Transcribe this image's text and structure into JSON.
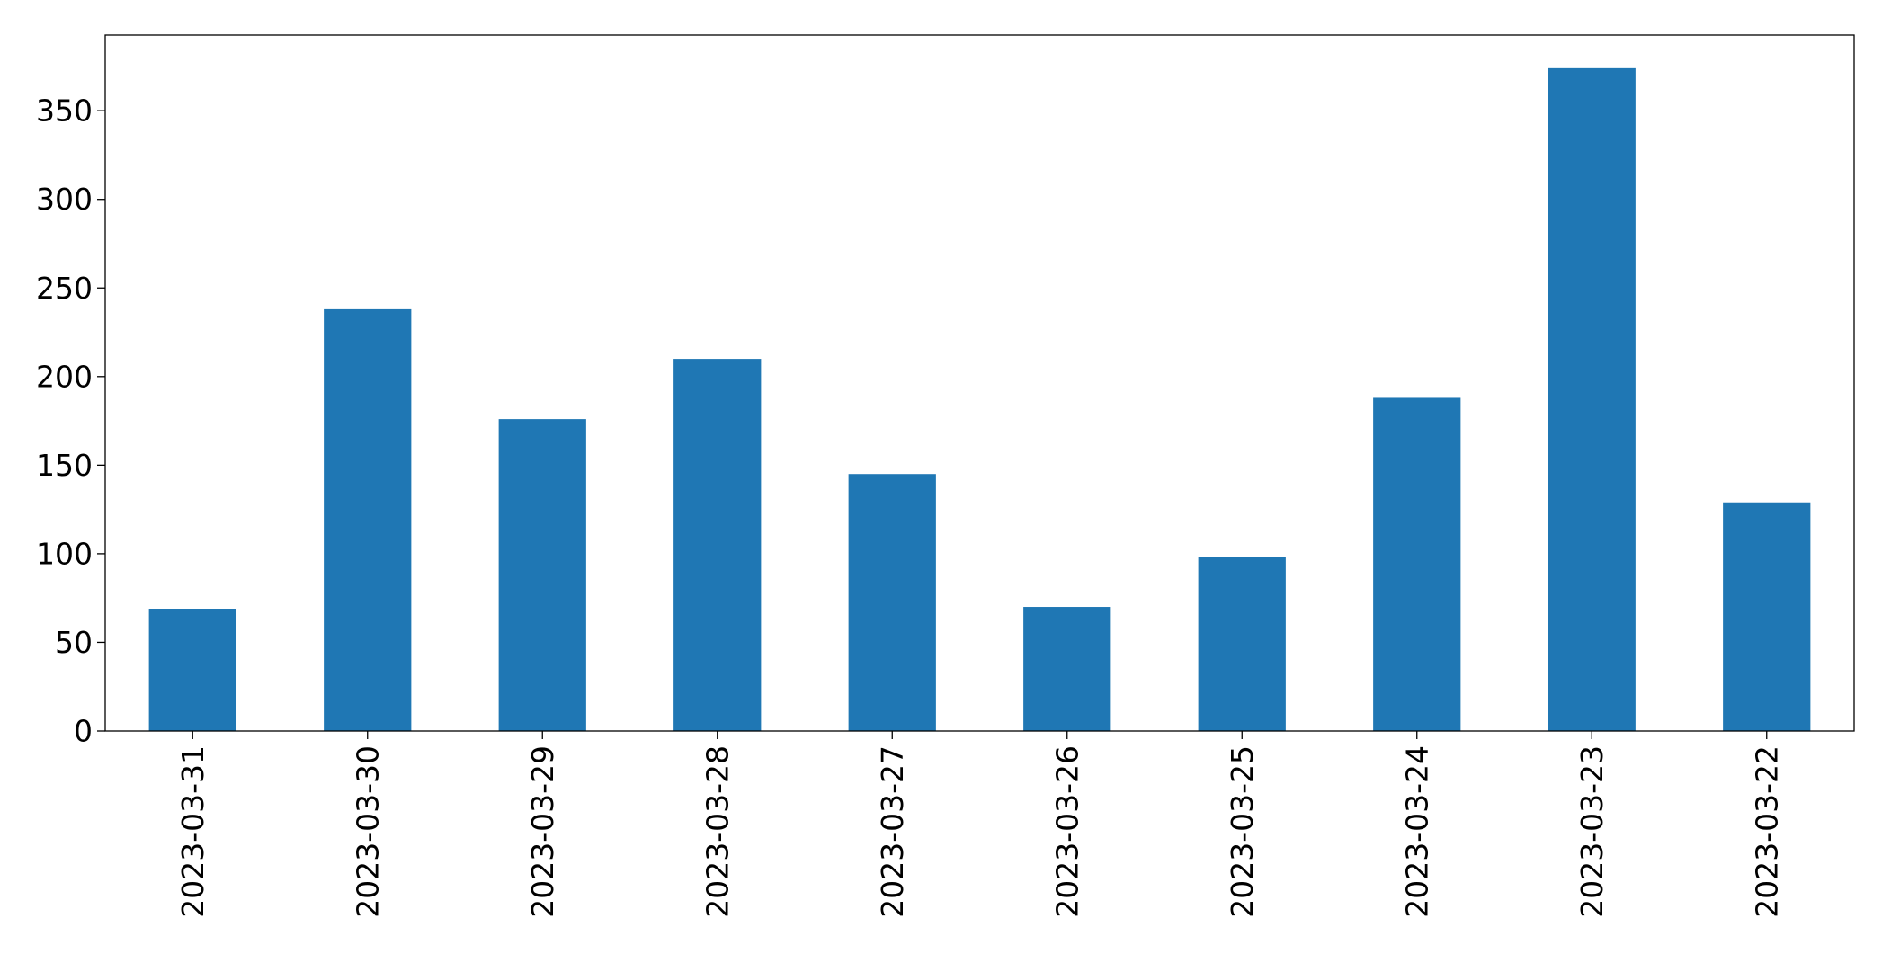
{
  "chart_data": {
    "type": "bar",
    "categories": [
      "2023-03-31",
      "2023-03-30",
      "2023-03-29",
      "2023-03-28",
      "2023-03-27",
      "2023-03-26",
      "2023-03-25",
      "2023-03-24",
      "2023-03-23",
      "2023-03-22"
    ],
    "values": [
      69,
      238,
      176,
      210,
      145,
      70,
      98,
      188,
      374,
      129
    ],
    "color": "#1f77b4",
    "ylim": [
      0,
      392.7
    ],
    "yticks": [
      0,
      50,
      100,
      150,
      200,
      250,
      300,
      350
    ],
    "grid": false
  }
}
